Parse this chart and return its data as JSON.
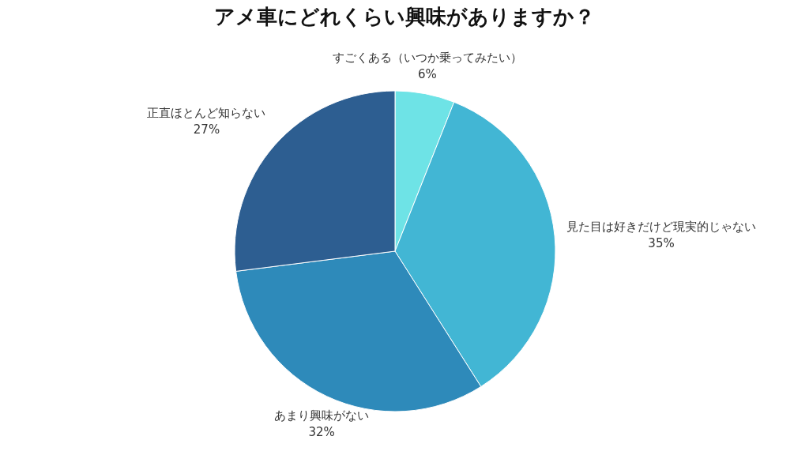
{
  "chart_data": {
    "type": "pie",
    "title": "アメ車にどれくらい興味がありますか？",
    "categories": [
      "すごくある（いつか乗ってみたい）",
      "見た目は好きだけど現実的じゃない",
      "あまり興味がない",
      "正直ほとんど知らない"
    ],
    "values": [
      6,
      35,
      32,
      27
    ],
    "value_labels": [
      "6%",
      "35%",
      "32%",
      "27%"
    ],
    "colors": [
      "#6ee3e6",
      "#42b6d4",
      "#2e8aba",
      "#2d5e91"
    ]
  }
}
